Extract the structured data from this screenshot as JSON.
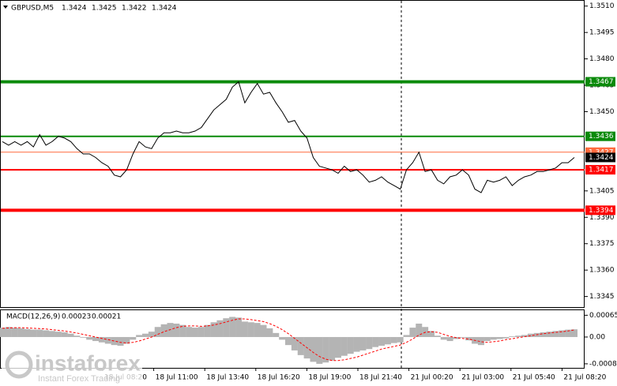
{
  "chart_data": {
    "type": "line",
    "symbol": "GBPUSD,M5",
    "ohlc": [
      1.3424,
      1.3425,
      1.3422,
      1.3424
    ],
    "color": "#000000",
    "values": [
      1.3433,
      1.3431,
      1.3433,
      1.3431,
      1.3433,
      1.343,
      1.3437,
      1.3431,
      1.3433,
      1.3436,
      1.3435,
      1.3433,
      1.3429,
      1.3426,
      1.3426,
      1.3424,
      1.3421,
      1.3419,
      1.3414,
      1.3413,
      1.3417,
      1.3426,
      1.3433,
      1.343,
      1.3429,
      1.3435,
      1.3438,
      1.3438,
      1.3439,
      1.3438,
      1.3438,
      1.3439,
      1.3441,
      1.3446,
      1.3451,
      1.3454,
      1.3457,
      1.3464,
      1.3467,
      1.3455,
      1.3461,
      1.3466,
      1.346,
      1.3461,
      1.3455,
      1.345,
      1.3444,
      1.3445,
      1.3439,
      1.3435,
      1.3424,
      1.3419,
      1.3418,
      1.3417,
      1.3415,
      1.3419,
      1.3416,
      1.3417,
      1.3414,
      1.341,
      1.3411,
      1.3413,
      1.341,
      1.3408,
      1.3406,
      1.3417,
      1.3421,
      1.3427,
      1.3416,
      1.3417,
      1.3411,
      1.3409,
      1.3413,
      1.3414,
      1.3417,
      1.3414,
      1.3406,
      1.3404,
      1.3411,
      1.341,
      1.3411,
      1.3413,
      1.3408,
      1.3411,
      1.3413,
      1.3414,
      1.3416,
      1.3416,
      1.3417,
      1.3418,
      1.3421,
      1.3421,
      1.3424
    ],
    "ylim": [
      1.3339,
      1.3513
    ],
    "yticks": [
      {
        "value": 1.3345,
        "label": "1.3345"
      },
      {
        "value": 1.336,
        "label": "1.3360"
      },
      {
        "value": 1.3375,
        "label": "1.3375"
      },
      {
        "value": 1.339,
        "label": "1.3390"
      },
      {
        "value": 1.3405,
        "label": "1.3405"
      },
      {
        "value": 1.345,
        "label": "1.3450"
      },
      {
        "value": 1.3465,
        "label": "1.3465"
      },
      {
        "value": 1.348,
        "label": "1.3480"
      },
      {
        "value": 1.3495,
        "label": "1.3495"
      },
      {
        "value": 1.351,
        "label": "1.3510"
      }
    ],
    "levels": [
      {
        "value": 1.3467,
        "color": "#0a8a0a",
        "line_width": 4
      },
      {
        "value": 1.3436,
        "color": "#0a8a0a",
        "line_width": 2
      },
      {
        "value": 1.3427,
        "color": "#ff6a3d",
        "line_width": 1
      },
      {
        "value": 1.3417,
        "color": "#ff0000",
        "line_width": 2
      },
      {
        "value": 1.3394,
        "color": "#ff0000",
        "line_width": 4
      }
    ],
    "bid": 1.3424,
    "x_labels": [
      "18 Jul 08:20",
      "18 Jul 11:00",
      "18 Jul 13:40",
      "18 Jul 16:20",
      "18 Jul 19:00",
      "18 Jul 21:40",
      "21 Jul 00:20",
      "21 Jul 03:00",
      "21 Jul 05:40",
      "21 Jul 08:20"
    ],
    "macd": {
      "title": "MACD(12,26,9)",
      "main": 0.00023,
      "signal": 0.00021,
      "ylim": [
        -0.00092,
        0.0008
      ],
      "yticks": [
        {
          "value": -0.0008,
          "label": "-0.0008"
        },
        {
          "value": 0,
          "label": "0.00"
        },
        {
          "value": 0.00065,
          "label": "0.00065"
        }
      ],
      "histogram_color": "#b4b4b4",
      "signal_color": "#ff0000",
      "histogram": [
        0.00028,
        0.0003,
        0.00028,
        0.00026,
        0.00024,
        0.00022,
        0.00022,
        0.0002,
        0.00018,
        0.00016,
        0.00014,
        0.0001,
        4e-05,
        -2e-05,
        -8e-05,
        -0.00012,
        -0.00016,
        -0.0002,
        -0.00024,
        -0.00026,
        -0.0002,
        -8e-05,
        6e-05,
        0.0001,
        0.00016,
        0.0003,
        0.00038,
        0.00042,
        0.0004,
        0.00036,
        0.0003,
        0.00028,
        0.0003,
        0.00036,
        0.00044,
        0.0005,
        0.00056,
        0.0006,
        0.00058,
        0.00046,
        0.00044,
        0.00042,
        0.00036,
        0.00026,
        0.00012,
        -8e-05,
        -0.00024,
        -0.0004,
        -0.00054,
        -0.00064,
        -0.00074,
        -0.0008,
        -0.00076,
        -0.0007,
        -0.00062,
        -0.00056,
        -0.0005,
        -0.00044,
        -0.0004,
        -0.00036,
        -0.0003,
        -0.00026,
        -0.00022,
        -0.00018,
        -0.00016,
        6e-05,
        0.00028,
        0.0004,
        0.0003,
        0.00018,
        4e-05,
        -8e-05,
        -0.00012,
        -6e-05,
        -2e-05,
        -0.0001,
        -0.0002,
        -0.00024,
        -0.00012,
        -8e-05,
        -6e-05,
        -4e-05,
        2e-05,
        4e-05,
        6e-05,
        0.0001,
        0.00012,
        0.00014,
        0.00016,
        0.00018,
        0.0002,
        0.00022,
        0.00023
      ],
      "signal_line": [
        0.00026,
        0.00027,
        0.00028,
        0.00028,
        0.00027,
        0.00026,
        0.00025,
        0.00024,
        0.00022,
        0.0002,
        0.00018,
        0.00015,
        0.00012,
        8e-05,
        4e-05,
        0,
        -4e-05,
        -8e-05,
        -0.00012,
        -0.00016,
        -0.00018,
        -0.00016,
        -0.00012,
        -6e-05,
        0,
        8e-05,
        0.00016,
        0.00022,
        0.00028,
        0.00032,
        0.00033,
        0.00033,
        0.00032,
        0.00033,
        0.00036,
        0.0004,
        0.00045,
        0.0005,
        0.00054,
        0.00054,
        0.00052,
        0.00049,
        0.00046,
        0.0004,
        0.00032,
        0.00022,
        0.0001,
        -4e-05,
        -0.00018,
        -0.00032,
        -0.00046,
        -0.00058,
        -0.00066,
        -0.0007,
        -0.0007,
        -0.00068,
        -0.00064,
        -0.0006,
        -0.00054,
        -0.00048,
        -0.00042,
        -0.00036,
        -0.00032,
        -0.00028,
        -0.00024,
        -0.00016,
        -6e-05,
        6e-05,
        0.00014,
        0.00016,
        0.00014,
        8e-05,
        2e-05,
        -2e-05,
        -4e-05,
        -6e-05,
        -0.0001,
        -0.00014,
        -0.00016,
        -0.00014,
        -0.00012,
        -8e-05,
        -5e-05,
        -2e-05,
        1e-05,
        4e-05,
        7e-05,
        0.0001,
        0.00012,
        0.00014,
        0.00016,
        0.00018,
        0.00021
      ]
    },
    "watermark": {
      "brand": "instaforex",
      "tagline": "Instant Forex Trading"
    }
  }
}
